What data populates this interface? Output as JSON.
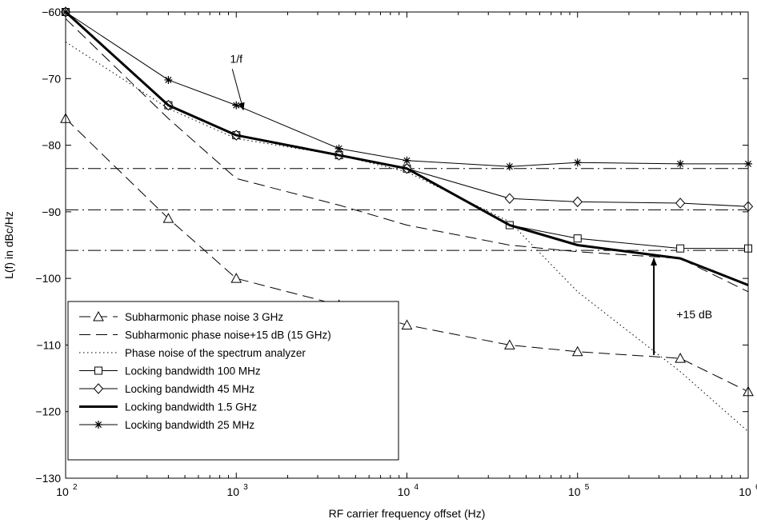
{
  "chart_data": {
    "type": "line",
    "title": "",
    "xlabel": "RF carrier frequency offset (Hz)",
    "ylabel": "L(f) in dBc/Hz",
    "x_scale": "log",
    "xlim": [
      100,
      1000000
    ],
    "ylim": [
      -130,
      -60
    ],
    "grid": false,
    "legend_position": "bottom-left",
    "x_ticks": [
      {
        "value": 100,
        "base": "10",
        "exp": "2"
      },
      {
        "value": 1000,
        "base": "10",
        "exp": "3"
      },
      {
        "value": 10000,
        "base": "10",
        "exp": "4"
      },
      {
        "value": 100000,
        "base": "10",
        "exp": "5"
      },
      {
        "value": 1000000,
        "base": "10",
        "exp": "6"
      }
    ],
    "y_ticks": [
      {
        "value": -60,
        "label": "−60"
      },
      {
        "value": -70,
        "label": "−70"
      },
      {
        "value": -80,
        "label": "−80"
      },
      {
        "value": -90,
        "label": "−90"
      },
      {
        "value": -100,
        "label": "−100"
      },
      {
        "value": -110,
        "label": "−110"
      },
      {
        "value": -120,
        "label": "−120"
      },
      {
        "value": -130,
        "label": "−130"
      }
    ],
    "series": [
      {
        "name": "Subharmonic phase noise 3 GHz",
        "style": "dashed",
        "width": 1,
        "marker": "triangle",
        "x": [
          100,
          400,
          1000,
          4000,
          10000,
          40000,
          100000,
          400000,
          1000000
        ],
        "y": [
          -76,
          -91,
          -100,
          -104,
          -107,
          -110,
          -111,
          -112,
          -117
        ]
      },
      {
        "name": "Subharmonic phase noise+15 dB (15 GHz)",
        "style": "dashed",
        "width": 1,
        "marker": "none",
        "x": [
          100,
          400,
          1000,
          4000,
          10000,
          40000,
          100000,
          400000,
          1000000
        ],
        "y": [
          -61,
          -76,
          -85,
          -89,
          -92,
          -95,
          -96,
          -97,
          -102
        ]
      },
      {
        "name": "Phase noise of the spectrum analyzer",
        "style": "dotted",
        "width": 1,
        "marker": "none",
        "x": [
          100,
          400,
          1000,
          4000,
          10000,
          40000,
          100000,
          400000,
          1000000
        ],
        "y": [
          -64.5,
          -74.5,
          -79,
          -81.5,
          -84,
          -91.5,
          -102,
          -114,
          -123
        ]
      },
      {
        "name": "Locking bandwidth 100 MHz",
        "style": "solid",
        "width": 1,
        "marker": "square",
        "x": [
          100,
          400,
          1000,
          4000,
          10000,
          40000,
          100000,
          400000,
          1000000
        ],
        "y": [
          -60,
          -74,
          -78.5,
          -81.5,
          -83.5,
          -92,
          -94,
          -95.5,
          -95.5
        ]
      },
      {
        "name": "Locking bandwidth 45 MHz",
        "style": "solid",
        "width": 1,
        "marker": "diamond",
        "x": [
          100,
          400,
          1000,
          4000,
          10000,
          40000,
          100000,
          400000,
          1000000
        ],
        "y": [
          -60,
          -74,
          -78.5,
          -81.5,
          -83.5,
          -88,
          -88.5,
          -88.7,
          -89.2
        ]
      },
      {
        "name": "Locking bandwidth 1.5  GHz",
        "style": "solid",
        "width": 3,
        "marker": "none",
        "x": [
          100,
          400,
          1000,
          4000,
          10000,
          40000,
          100000,
          400000,
          1000000
        ],
        "y": [
          -60,
          -74,
          -78.5,
          -81.5,
          -83.5,
          -92,
          -95,
          -97,
          -101
        ]
      },
      {
        "name": "Locking bandwidth 25 MHz",
        "style": "solid",
        "width": 1,
        "marker": "star",
        "x": [
          100,
          400,
          1000,
          4000,
          10000,
          40000,
          100000,
          400000,
          1000000
        ],
        "y": [
          -60,
          -70.2,
          -74,
          -80.5,
          -82.3,
          -83.2,
          -82.6,
          -82.8,
          -82.8
        ]
      }
    ],
    "reference_lines": [
      {
        "y": -83.5,
        "style": "dashdot"
      },
      {
        "y": -89.7,
        "style": "dashdot"
      },
      {
        "y": -95.8,
        "style": "dashdot"
      }
    ],
    "annotations": [
      {
        "text": "1/f",
        "x": 1000,
        "y": -67.6,
        "arrow_to": [
          1100,
          -74.7
        ]
      },
      {
        "text": "+15 dB",
        "x": 380000,
        "y": -106,
        "arrow_from": [
          280000,
          -111.5
        ],
        "arrow_to": [
          280000,
          -97
        ]
      }
    ]
  }
}
